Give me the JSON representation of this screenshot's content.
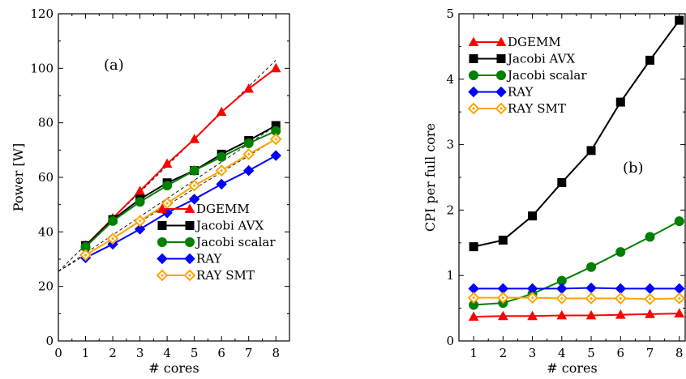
{
  "chart_data": [
    {
      "type": "line",
      "panel_label": "(a)",
      "title": "",
      "xlabel": "# cores",
      "ylabel": "Power [W]",
      "xlim": [
        0,
        8.5
      ],
      "ylim": [
        0,
        120
      ],
      "x_ticks": [
        0,
        1,
        2,
        3,
        4,
        5,
        6,
        7,
        8
      ],
      "y_ticks": [
        0,
        20,
        40,
        60,
        80,
        100,
        120
      ],
      "legend_position": "bottom-right",
      "grid": false,
      "x": [
        1,
        2,
        3,
        4,
        5,
        6,
        7,
        8
      ],
      "series": [
        {
          "name": "DGEMM",
          "color": "#ff0000",
          "marker": "triangle",
          "values": [
            35,
            45,
            55,
            65,
            74,
            84,
            92.5,
            100
          ]
        },
        {
          "name": "Jacobi AVX",
          "color": "#000000",
          "marker": "square",
          "values": [
            35,
            44.5,
            52,
            58,
            62.5,
            68.5,
            73.5,
            79
          ]
        },
        {
          "name": "Jacobi scalar",
          "color": "#008000",
          "marker": "circle",
          "values": [
            34.5,
            44,
            51,
            57,
            62.5,
            67.5,
            72.5,
            77
          ]
        },
        {
          "name": "RAY",
          "color": "#0000ff",
          "marker": "diamond",
          "values": [
            30.5,
            35.5,
            41,
            47,
            52,
            57.5,
            62.5,
            68
          ]
        },
        {
          "name": "RAY SMT",
          "color": "#ffa500",
          "marker": "diamond-open",
          "values": [
            31.5,
            37.5,
            44,
            50.5,
            57,
            62.5,
            68.5,
            74
          ]
        }
      ],
      "reference_lines": [
        {
          "style": "dashed",
          "x": [
            0,
            8
          ],
          "values": [
            25.5,
            103
          ]
        },
        {
          "style": "dashed",
          "x": [
            0,
            8
          ],
          "values": [
            25.5,
            79
          ]
        },
        {
          "style": "dashed",
          "x": [
            0,
            8
          ],
          "values": [
            25.5,
            74
          ]
        }
      ]
    },
    {
      "type": "line",
      "panel_label": "(b)",
      "title": "",
      "xlabel": "# cores",
      "ylabel": "CPI per full core",
      "xlim": [
        0.5,
        8.2
      ],
      "ylim": [
        0,
        5
      ],
      "x_ticks": [
        1,
        2,
        3,
        4,
        5,
        6,
        7,
        8
      ],
      "y_ticks": [
        0,
        1,
        2,
        3,
        4,
        5
      ],
      "legend_position": "top-left",
      "grid": false,
      "x": [
        1,
        2,
        3,
        4,
        5,
        6,
        7,
        8
      ],
      "series": [
        {
          "name": "DGEMM",
          "color": "#ff0000",
          "marker": "triangle",
          "values": [
            0.37,
            0.38,
            0.38,
            0.39,
            0.39,
            0.4,
            0.41,
            0.42
          ]
        },
        {
          "name": "Jacobi AVX",
          "color": "#000000",
          "marker": "square",
          "values": [
            1.44,
            1.54,
            1.91,
            2.42,
            2.91,
            3.65,
            4.29,
            4.9
          ]
        },
        {
          "name": "Jacobi scalar",
          "color": "#008000",
          "marker": "circle",
          "values": [
            0.55,
            0.58,
            0.72,
            0.92,
            1.13,
            1.36,
            1.59,
            1.83
          ]
        },
        {
          "name": "RAY",
          "color": "#0000ff",
          "marker": "diamond",
          "values": [
            0.8,
            0.8,
            0.8,
            0.8,
            0.81,
            0.8,
            0.8,
            0.8
          ]
        },
        {
          "name": "RAY SMT",
          "color": "#ffa500",
          "marker": "diamond-open",
          "values": [
            0.66,
            0.66,
            0.66,
            0.65,
            0.65,
            0.65,
            0.64,
            0.65
          ]
        }
      ],
      "reference_lines": []
    }
  ]
}
